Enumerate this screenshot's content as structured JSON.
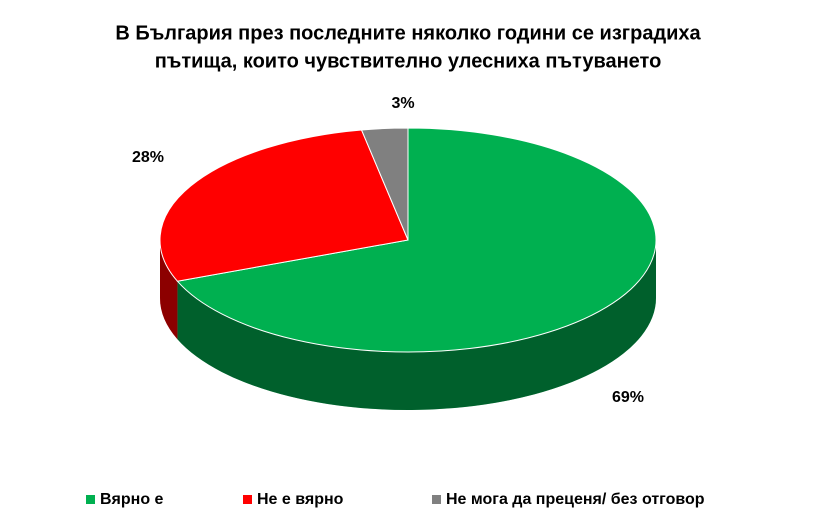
{
  "chart_data": {
    "type": "pie",
    "title": [
      "В България през последните няколко години се изградиха",
      "пътища, които чувствително улесниха пътуването"
    ],
    "categories": [
      "Вярно е",
      "Не е вярно",
      "Не мога да преценя/ без отговор"
    ],
    "values": [
      69,
      28,
      3
    ],
    "value_labels": [
      "69%",
      "28%",
      "3%"
    ],
    "colors": [
      "#00b050",
      "#ff0000",
      "#808080"
    ],
    "legend": "bottom"
  }
}
